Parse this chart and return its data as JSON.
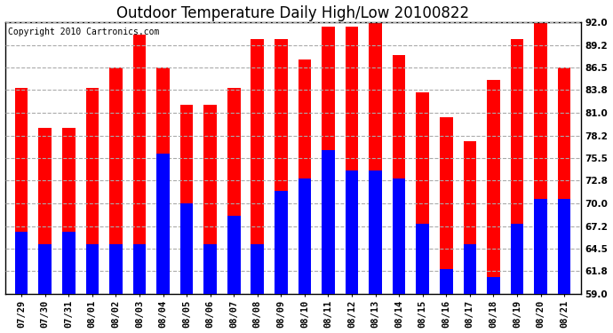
{
  "title": "Outdoor Temperature Daily High/Low 20100822",
  "copyright": "Copyright 2010 Cartronics.com",
  "dates": [
    "07/29",
    "07/30",
    "07/31",
    "08/01",
    "08/02",
    "08/03",
    "08/04",
    "08/05",
    "08/06",
    "08/07",
    "08/08",
    "08/09",
    "08/10",
    "08/11",
    "08/12",
    "08/13",
    "08/14",
    "08/15",
    "08/16",
    "08/17",
    "08/18",
    "08/19",
    "08/20",
    "08/21"
  ],
  "highs": [
    84.0,
    79.2,
    79.2,
    84.0,
    86.5,
    90.5,
    86.5,
    82.0,
    82.0,
    84.0,
    90.0,
    90.0,
    87.5,
    91.5,
    91.5,
    92.0,
    88.0,
    83.5,
    80.5,
    77.5,
    85.0,
    90.0,
    92.0,
    86.5
  ],
  "lows": [
    66.5,
    65.0,
    66.5,
    65.0,
    65.0,
    65.0,
    76.0,
    70.0,
    65.0,
    68.5,
    65.0,
    71.5,
    73.0,
    76.5,
    74.0,
    74.0,
    73.0,
    67.5,
    62.0,
    65.0,
    61.0,
    67.5,
    70.5,
    70.5
  ],
  "bar_color_high": "#ff0000",
  "bar_color_low": "#0000ff",
  "bg_color": "#ffffff",
  "plot_bg_color": "#ffffff",
  "grid_color": "#aaaaaa",
  "ylim_min": 59.0,
  "ylim_max": 92.0,
  "yticks": [
    59.0,
    61.8,
    64.5,
    67.2,
    70.0,
    72.8,
    75.5,
    78.2,
    81.0,
    83.8,
    86.5,
    89.2,
    92.0
  ],
  "title_fontsize": 12,
  "copyright_fontsize": 7,
  "tick_fontsize": 7.5,
  "bar_width": 0.55
}
